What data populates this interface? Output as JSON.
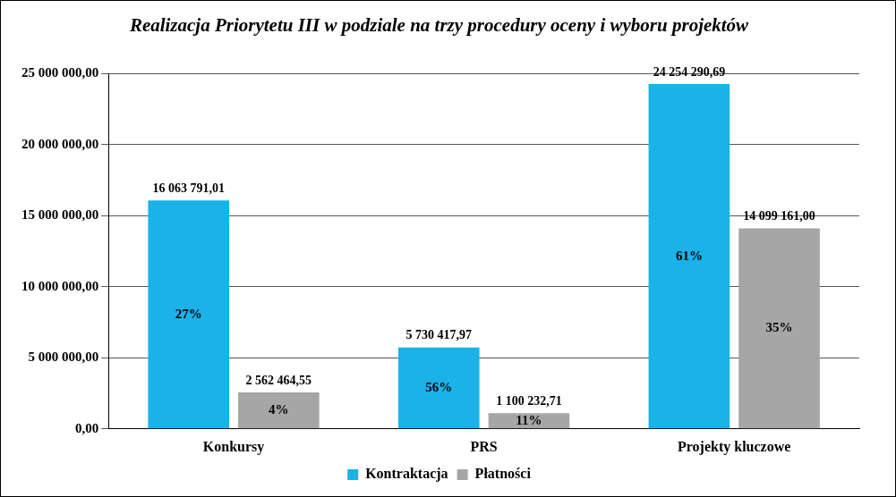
{
  "chart_data": {
    "type": "bar",
    "title": "Realizacja Priorytetu III w podziale na trzy procedury oceny i wyboru projektów",
    "categories": [
      "Konkursy",
      "PRS",
      "Projekty kluczowe"
    ],
    "series": [
      {
        "name": "Kontraktacja",
        "color": "#1ab2e8",
        "values": [
          16063791.01,
          5730417.97,
          24254290.69
        ],
        "value_labels": [
          "16 063 791,01",
          "5 730 417,97",
          "24 254 290,69"
        ],
        "share_labels": [
          "27%",
          "56%",
          "61%"
        ]
      },
      {
        "name": "Płatności",
        "color": "#a6a6a6",
        "values": [
          2562464.55,
          1100232.71,
          14099161.0
        ],
        "value_labels": [
          "2 562 464,55",
          "1 100 232,71",
          "14 099 161,00"
        ],
        "share_labels": [
          "4%",
          "11%",
          "35%"
        ]
      }
    ],
    "ylim": [
      0,
      25000000
    ],
    "yticks": [
      {
        "value": 0,
        "label": "0,00"
      },
      {
        "value": 5000000,
        "label": "5 000 000,00"
      },
      {
        "value": 10000000,
        "label": "10 000 000,00"
      },
      {
        "value": 15000000,
        "label": "15 000 000,00"
      },
      {
        "value": 20000000,
        "label": "20 000 000,00"
      },
      {
        "value": 25000000,
        "label": "25 000 000,00"
      }
    ],
    "grid": true,
    "legend": "bottom",
    "data_labels": true
  }
}
